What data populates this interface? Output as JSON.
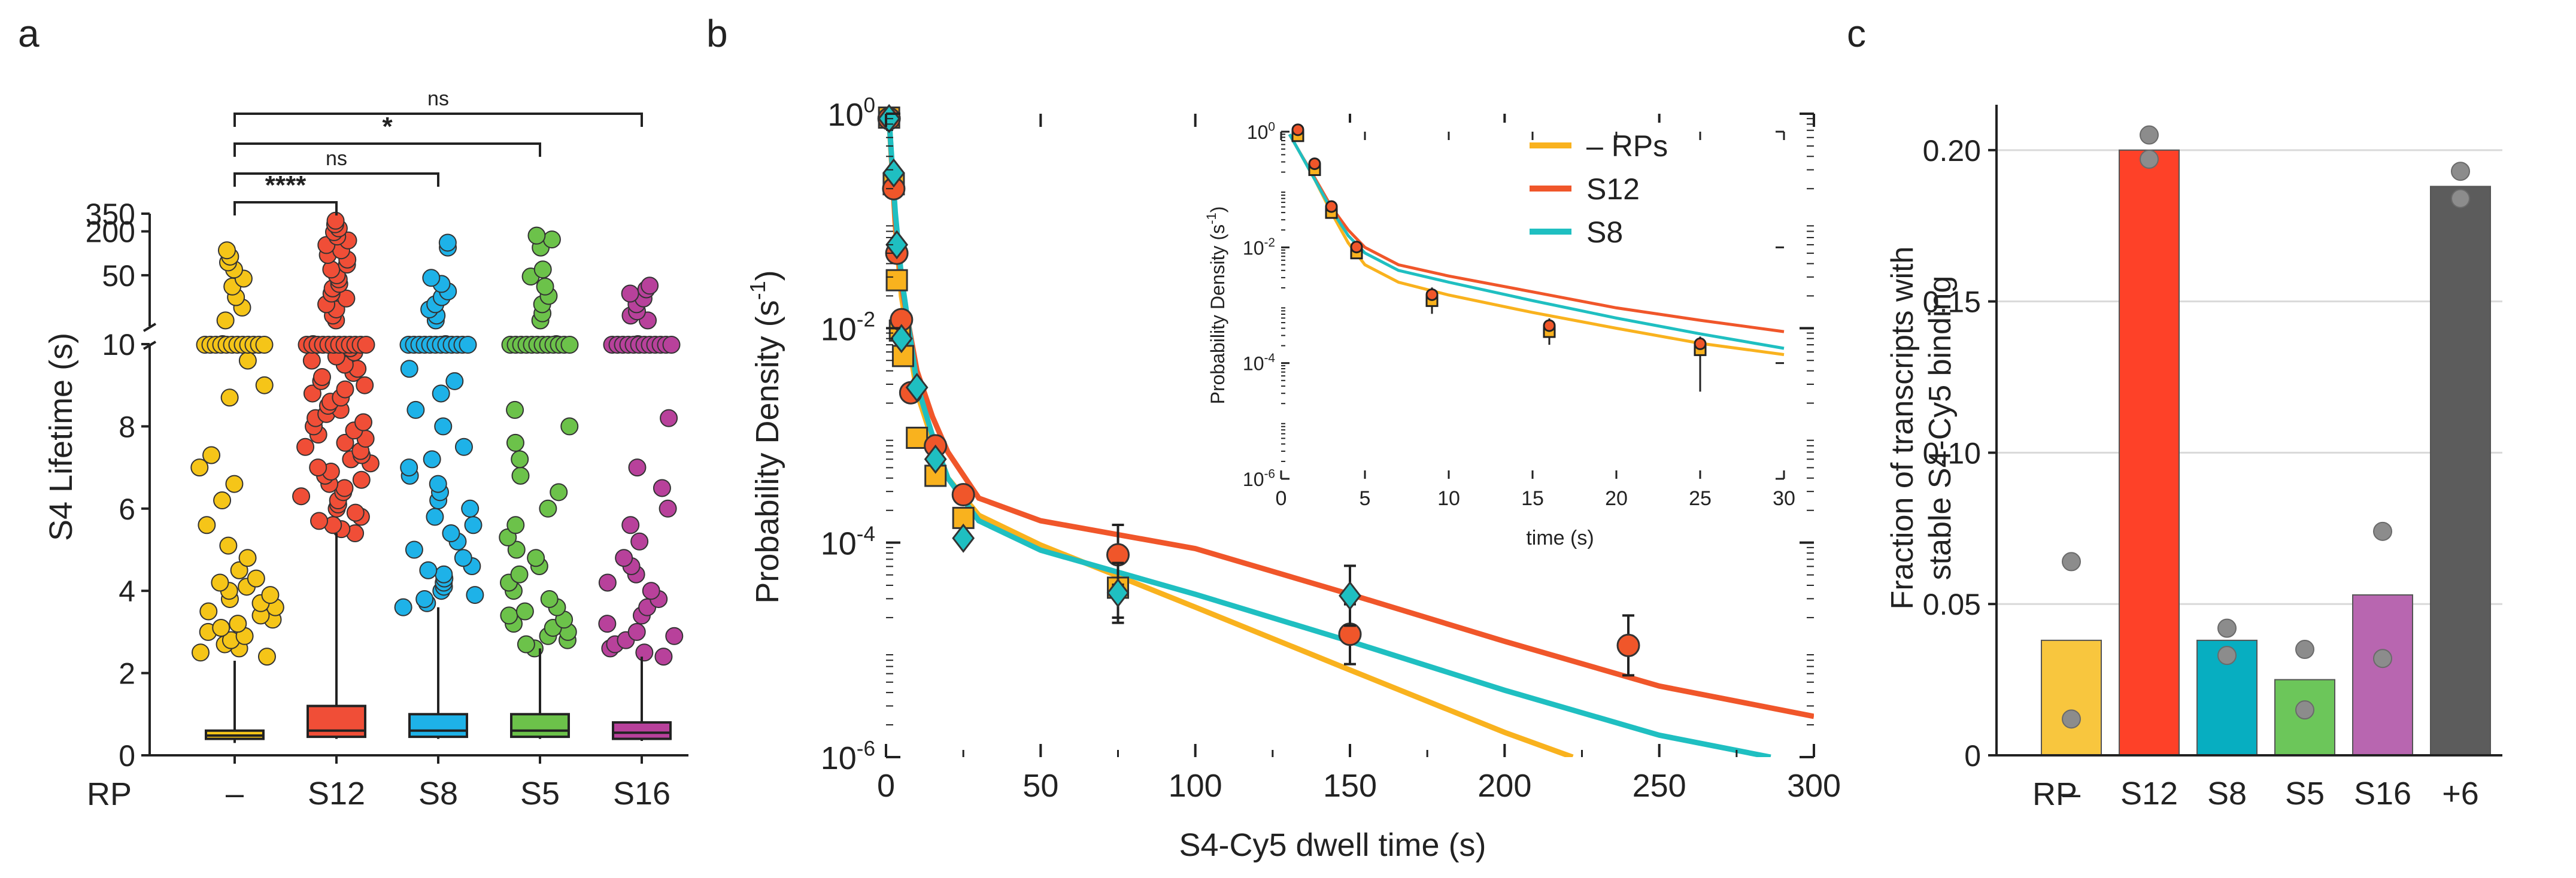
{
  "panels": {
    "a": {
      "letter": "a"
    },
    "b": {
      "letter": "b"
    },
    "c": {
      "letter": "c"
    }
  },
  "chart_data": [
    {
      "panel": "a",
      "type": "box",
      "ylabel": "S4 Lifetime (s)",
      "row_label": "RP",
      "categories": [
        "–",
        "S12",
        "S8",
        "S5",
        "S16"
      ],
      "colors": [
        "#f5c518",
        "#f04e37",
        "#1eb2e8",
        "#6cc24a",
        "#b8419b"
      ],
      "y_ticks_lower": [
        "0",
        "2",
        "4",
        "6",
        "8",
        "10"
      ],
      "y_ticks_upper": [
        "50",
        "200",
        "350"
      ],
      "ylim_lower": [
        0,
        10
      ],
      "ylim_upper": [
        10,
        350
      ],
      "boxes": [
        {
          "q1": 0.4,
          "median": 0.48,
          "q3": 0.6,
          "whisker_low": 0.3,
          "whisker_high": 2.3
        },
        {
          "q1": 0.45,
          "median": 0.6,
          "q3": 1.2,
          "whisker_low": 0.4,
          "whisker_high": 5.4
        },
        {
          "q1": 0.45,
          "median": 0.6,
          "q3": 1.0,
          "whisker_low": 0.4,
          "whisker_high": 3.6
        },
        {
          "q1": 0.45,
          "median": 0.6,
          "q3": 1.0,
          "whisker_low": 0.4,
          "whisker_high": 2.6
        },
        {
          "q1": 0.4,
          "median": 0.55,
          "q3": 0.8,
          "whisker_low": 0.35,
          "whisker_high": 2.4
        }
      ],
      "outliers_lower": [
        [
          2.4,
          2.5,
          2.6,
          2.7,
          2.8,
          2.9,
          3.0,
          3.1,
          3.2,
          3.3,
          3.4,
          3.5,
          3.6,
          3.7,
          3.8,
          3.9,
          4.0,
          4.1,
          4.2,
          4.3,
          4.5,
          4.8,
          5.1,
          5.6,
          6.2,
          6.6,
          7.0,
          7.3,
          8.7,
          9.0,
          9.6,
          10.0
        ],
        [
          5.4,
          5.5,
          5.6,
          5.7,
          5.8,
          5.9,
          6.0,
          6.1,
          6.2,
          6.3,
          6.4,
          6.5,
          6.6,
          6.7,
          6.8,
          6.9,
          7.0,
          7.1,
          7.2,
          7.3,
          7.4,
          7.5,
          7.6,
          7.7,
          7.8,
          7.9,
          8.0,
          8.1,
          8.2,
          8.3,
          8.4,
          8.5,
          8.6,
          8.7,
          8.8,
          8.9,
          9.0,
          9.1,
          9.2,
          9.3,
          9.4,
          9.5,
          9.6,
          9.7,
          9.8,
          9.9,
          10.0
        ],
        [
          3.6,
          3.7,
          3.8,
          3.9,
          4.0,
          4.1,
          4.2,
          4.3,
          4.4,
          4.5,
          4.6,
          4.8,
          5.0,
          5.2,
          5.4,
          5.6,
          5.8,
          6.0,
          6.2,
          6.4,
          6.6,
          6.8,
          7.0,
          7.2,
          7.5,
          8.0,
          8.4,
          8.8,
          9.1,
          9.4,
          10.0
        ],
        [
          2.6,
          2.7,
          2.8,
          2.9,
          3.0,
          3.1,
          3.2,
          3.3,
          3.4,
          3.5,
          3.6,
          3.8,
          4.0,
          4.2,
          4.4,
          4.6,
          4.8,
          5.0,
          5.3,
          5.6,
          6.0,
          6.4,
          6.8,
          7.2,
          7.6,
          8.0,
          8.4,
          10.0
        ],
        [
          2.4,
          2.5,
          2.6,
          2.7,
          2.8,
          2.9,
          3.0,
          3.2,
          3.4,
          3.6,
          3.8,
          4.0,
          4.2,
          4.4,
          4.6,
          4.8,
          5.2,
          5.6,
          6.0,
          6.5,
          7.0,
          8.2,
          10.0
        ]
      ],
      "outliers_upper": [
        [
          12,
          18,
          25,
          35,
          45,
          60,
          75,
          90,
          110
        ],
        [
          12,
          14,
          17,
          20,
          24,
          28,
          33,
          38,
          44,
          50,
          60,
          70,
          82,
          95,
          110,
          130,
          150,
          170,
          195,
          220,
          250,
          280
        ],
        [
          12,
          14,
          17,
          20,
          25,
          30,
          38,
          46,
          120,
          140
        ],
        [
          12,
          15,
          20,
          26,
          35,
          48,
          60,
          120,
          155,
          175
        ],
        [
          12,
          14,
          16,
          20,
          24,
          28,
          32,
          36
        ]
      ],
      "comparisons": [
        {
          "from": "–",
          "to": "S12",
          "label": "****"
        },
        {
          "from": "–",
          "to": "S8",
          "label": "ns"
        },
        {
          "from": "–",
          "to": "S5",
          "label": "*"
        },
        {
          "from": "–",
          "to": "S16",
          "label": "ns"
        }
      ]
    },
    {
      "panel": "b",
      "type": "scatter-line",
      "xlabel": "S4-Cy5 dwell time (s)",
      "ylabel_main": "Probability Density (s",
      "ylabel_sup": "-1",
      "ylabel_close": ")",
      "xlim": [
        0,
        300
      ],
      "y_log_range": [
        -6,
        0
      ],
      "x_ticks": [
        "0",
        "50",
        "100",
        "150",
        "200",
        "250",
        "300"
      ],
      "y_tick_labels": [
        {
          "base": "10",
          "exp": "0"
        },
        {
          "base": "10",
          "exp": "-2"
        },
        {
          "base": "10",
          "exp": "-4"
        },
        {
          "base": "10",
          "exp": "-6"
        }
      ],
      "series": [
        {
          "name": "– RPs",
          "color": "#f9b21e",
          "marker": "square",
          "points": [
            [
              1,
              0.92
            ],
            [
              2.5,
              0.22
            ],
            [
              3.5,
              0.028
            ],
            [
              4.5,
              0.0095
            ],
            [
              5.5,
              0.0055
            ],
            [
              10,
              0.00095
            ],
            [
              16,
              0.00042
            ],
            [
              25,
              0.00017
            ],
            [
              75,
              3.8e-05
            ]
          ],
          "fit": [
            [
              1,
              0.9
            ],
            [
              3,
              0.09
            ],
            [
              5,
              0.02
            ],
            [
              10,
              0.0025
            ],
            [
              15,
              0.0009
            ],
            [
              20,
              0.0004
            ],
            [
              30,
              0.00018
            ],
            [
              50,
              9.5e-05
            ],
            [
              100,
              2.5e-05
            ],
            [
              150,
              6.5e-06
            ],
            [
              200,
              1.7e-06
            ],
            [
              222,
              1e-06
            ]
          ]
        },
        {
          "name": "S12",
          "color": "#f0562a",
          "marker": "circle",
          "points": [
            [
              1,
              0.9
            ],
            [
              2.5,
              0.2
            ],
            [
              3.5,
              0.05
            ],
            [
              5,
              0.012
            ],
            [
              8,
              0.0025
            ],
            [
              16,
              0.0008
            ],
            [
              25,
              0.00028
            ],
            [
              75,
              7.7e-05
            ],
            [
              150,
              1.4e-05
            ],
            [
              240,
              1.1e-05
            ]
          ],
          "fit": [
            [
              1,
              0.9
            ],
            [
              3,
              0.1
            ],
            [
              5,
              0.025
            ],
            [
              10,
              0.004
            ],
            [
              15,
              0.0015
            ],
            [
              20,
              0.0007
            ],
            [
              30,
              0.00026
            ],
            [
              50,
              0.00016
            ],
            [
              100,
              8.8e-05
            ],
            [
              150,
              3.3e-05
            ],
            [
              200,
              1.2e-05
            ],
            [
              250,
              4.6e-06
            ],
            [
              300,
              2.4e-06
            ]
          ]
        },
        {
          "name": "S8",
          "color": "#1fbfc1",
          "marker": "diamond",
          "points": [
            [
              1,
              0.9
            ],
            [
              2.5,
              0.28
            ],
            [
              3.5,
              0.06
            ],
            [
              5,
              0.008
            ],
            [
              10,
              0.0028
            ],
            [
              16,
              0.0006
            ],
            [
              25,
              0.00011
            ],
            [
              75,
              3.4e-05
            ],
            [
              150,
              3.2e-05
            ]
          ],
          "fit": [
            [
              1,
              0.9
            ],
            [
              3,
              0.12
            ],
            [
              5,
              0.03
            ],
            [
              10,
              0.003
            ],
            [
              15,
              0.001
            ],
            [
              20,
              0.0004
            ],
            [
              30,
              0.00016
            ],
            [
              50,
              8.5e-05
            ],
            [
              100,
              3.3e-05
            ],
            [
              150,
              1.2e-05
            ],
            [
              200,
              4.2e-06
            ],
            [
              250,
              1.6e-06
            ],
            [
              286,
              1e-06
            ]
          ]
        }
      ],
      "inset": {
        "xlabel": "time (s)",
        "ylabel_main": "Probability Density (s",
        "ylabel_sup": "-1",
        "ylabel_close": ")",
        "xlim": [
          0,
          30
        ],
        "y_log_range": [
          -6,
          0
        ],
        "x_ticks": [
          "0",
          "5",
          "10",
          "15",
          "20",
          "25",
          "30"
        ],
        "y_tick_labels": [
          {
            "base": "10",
            "exp": "0"
          },
          {
            "base": "10",
            "exp": "-2"
          },
          {
            "base": "10",
            "exp": "-4"
          },
          {
            "base": "10",
            "exp": "-6"
          }
        ],
        "points": [
          [
            1,
            0.85
          ],
          [
            2,
            0.22
          ],
          [
            3,
            0.04
          ],
          [
            4.5,
            0.008
          ],
          [
            9,
            0.0012
          ],
          [
            16,
            0.00035
          ],
          [
            25,
            0.00017
          ]
        ],
        "fits": [
          [
            [
              0.5,
              0.9
            ],
            [
              1,
              0.5
            ],
            [
              2,
              0.15
            ],
            [
              3,
              0.04
            ],
            [
              4,
              0.012
            ],
            [
              5,
              0.005
            ],
            [
              7,
              0.0025
            ],
            [
              10,
              0.0015
            ],
            [
              15,
              0.00075
            ],
            [
              20,
              0.0004
            ],
            [
              25,
              0.00022
            ],
            [
              30,
              0.00014
            ]
          ],
          [
            [
              0.5,
              0.9
            ],
            [
              1,
              0.5
            ],
            [
              2,
              0.16
            ],
            [
              3,
              0.05
            ],
            [
              4,
              0.02
            ],
            [
              5,
              0.01
            ],
            [
              7,
              0.005
            ],
            [
              10,
              0.0032
            ],
            [
              15,
              0.0017
            ],
            [
              20,
              0.0009
            ],
            [
              25,
              0.00055
            ],
            [
              30,
              0.00035
            ]
          ],
          [
            [
              0.5,
              0.9
            ],
            [
              1,
              0.5
            ],
            [
              2,
              0.15
            ],
            [
              3,
              0.045
            ],
            [
              4,
              0.016
            ],
            [
              5,
              0.008
            ],
            [
              7,
              0.004
            ],
            [
              10,
              0.0025
            ],
            [
              15,
              0.0012
            ],
            [
              20,
              0.0006
            ],
            [
              25,
              0.00032
            ],
            [
              30,
              0.00018
            ]
          ]
        ]
      }
    },
    {
      "panel": "c",
      "type": "bar",
      "ylabel_line1": "Fraction of transcripts with",
      "ylabel_line2": "stable S4-Cy5 binding",
      "row_label": "RP",
      "categories": [
        "–",
        "S12",
        "S8",
        "S5",
        "S16",
        "+6"
      ],
      "values": [
        0.038,
        0.2,
        0.038,
        0.025,
        0.053,
        0.188
      ],
      "replicates": [
        [
          0.064,
          0.012
        ],
        [
          0.205,
          0.197
        ],
        [
          0.042,
          0.033
        ],
        [
          0.035,
          0.015
        ],
        [
          0.074,
          0.032
        ],
        [
          0.193,
          0.184
        ]
      ],
      "colors": [
        "#f8c63e",
        "#fe4128",
        "#07aec1",
        "#6cc65a",
        "#b866b0",
        "#5c5c5c"
      ],
      "ylim": [
        0,
        0.215
      ],
      "y_ticks": [
        "0",
        "0.05",
        "0.10",
        "0.15",
        "0.20"
      ],
      "y_tick_values": [
        0,
        0.05,
        0.1,
        0.15,
        0.2
      ]
    }
  ]
}
